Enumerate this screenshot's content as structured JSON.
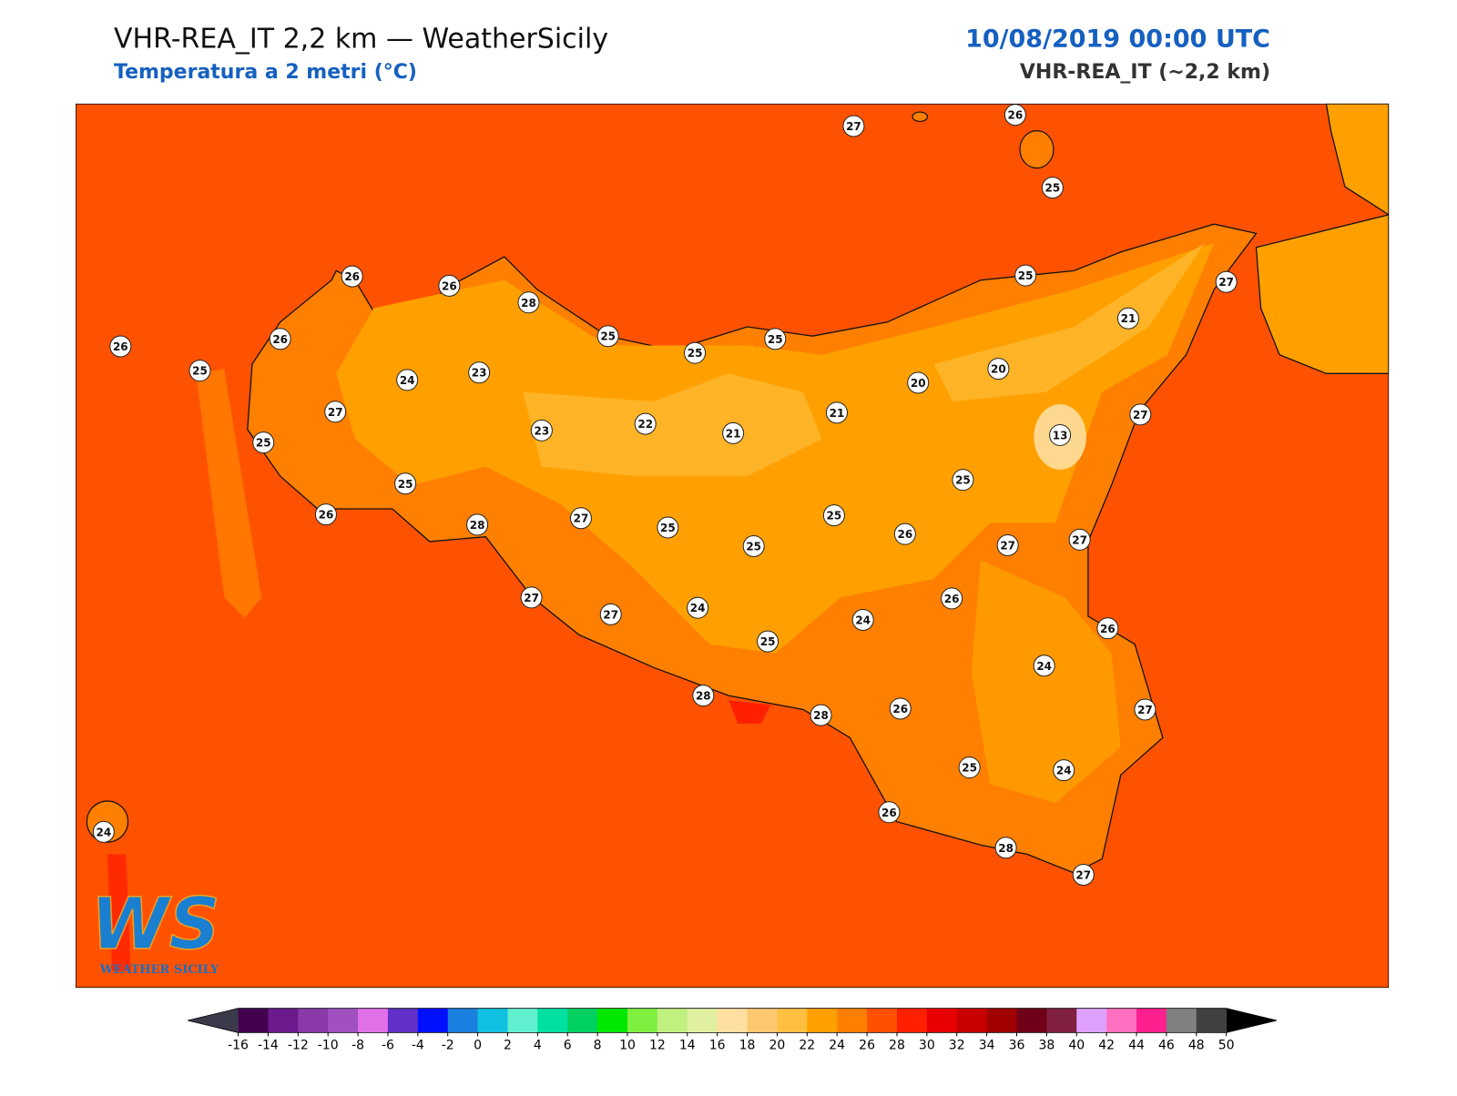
{
  "header": {
    "title": "VHR-REA_IT 2,2 km — WeatherSicily",
    "subtitle": "Temperatura a 2 metri (°C)",
    "date": "10/08/2019 00:00 UTC",
    "model": "VHR-REA_IT (~2,2 km)"
  },
  "map": {
    "sea_color": "#fe5200",
    "land_colors": [
      "#ff7f00",
      "#ffa000",
      "#ffc040"
    ],
    "stations": [
      27,
      26,
      25,
      26,
      26,
      28,
      25,
      27,
      26,
      26,
      25,
      25,
      25,
      25,
      21,
      24,
      23,
      27,
      20,
      20,
      21,
      25,
      23,
      22,
      21,
      27,
      13,
      25,
      25,
      26,
      28,
      27,
      25,
      25,
      26,
      25,
      27,
      27,
      27,
      27,
      24,
      26,
      24,
      26,
      25,
      24,
      28,
      28,
      26,
      27,
      25,
      24,
      26,
      28,
      27,
      24
    ]
  },
  "colorbar": {
    "ticks": [
      -16,
      -14,
      -12,
      -10,
      -8,
      -6,
      -4,
      -2,
      0,
      2,
      4,
      6,
      8,
      10,
      12,
      14,
      16,
      18,
      20,
      22,
      24,
      26,
      28,
      30,
      32,
      34,
      36,
      38,
      40,
      42,
      44,
      46,
      48,
      50
    ],
    "colors": [
      "#42004f",
      "#6b1b8c",
      "#8a3aa8",
      "#a050c0",
      "#e070e8",
      "#6030c8",
      "#0010ff",
      "#1a80e0",
      "#10c0e0",
      "#60f0d0",
      "#00e0a0",
      "#00d060",
      "#00e800",
      "#80f040",
      "#c0f080",
      "#e0f0a0",
      "#ffe0a0",
      "#ffc870",
      "#ffc040",
      "#ffa000",
      "#ff8000",
      "#ff5000",
      "#ff2000",
      "#e80000",
      "#c80000",
      "#a00000",
      "#700018",
      "#802040",
      "#e0a0ff",
      "#ff70c0",
      "#ff2090",
      "#808080",
      "#404040"
    ],
    "under_color": "#3a3a4a",
    "over_color": "#000000"
  },
  "logo": {
    "mark": "WS",
    "text": "WEATHER SICILY"
  }
}
